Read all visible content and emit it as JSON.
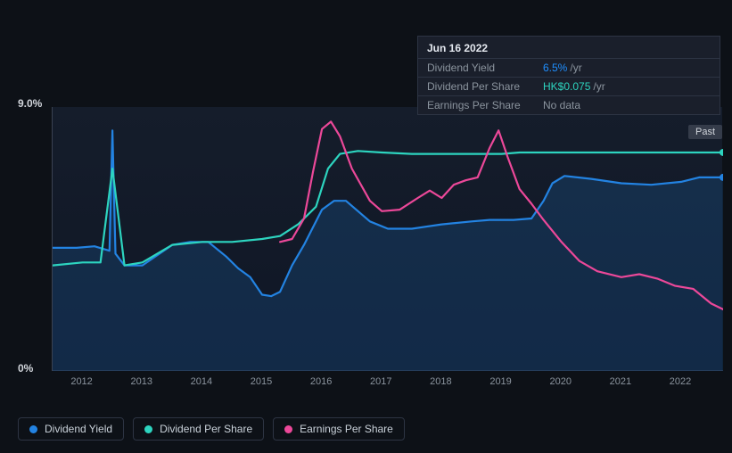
{
  "chart": {
    "type": "line",
    "background_color": "#0d1117",
    "plot_background": "#151d2b",
    "grid_color": "#3b4252",
    "y_axis": {
      "min_label": "0%",
      "max_label": "9.0%",
      "ylim": [
        0,
        9
      ],
      "label_color": "#d1d5db",
      "label_fontsize": 12
    },
    "x_axis": {
      "labels": [
        "2012",
        "2013",
        "2014",
        "2015",
        "2016",
        "2017",
        "2018",
        "2019",
        "2020",
        "2021",
        "2022"
      ],
      "label_color": "#8b949e",
      "label_fontsize": 11,
      "xlim": [
        2011.5,
        2022.7
      ]
    },
    "series": [
      {
        "name": "Dividend Yield",
        "color": "#2383e2",
        "line_width": 2.2,
        "has_area_fill": true,
        "area_opacity": 0.18,
        "end_marker": true,
        "points": [
          [
            2011.5,
            4.2
          ],
          [
            2011.9,
            4.2
          ],
          [
            2012.2,
            4.25
          ],
          [
            2012.45,
            4.1
          ],
          [
            2012.5,
            8.2
          ],
          [
            2012.55,
            4.0
          ],
          [
            2012.7,
            3.6
          ],
          [
            2013.0,
            3.6
          ],
          [
            2013.5,
            4.3
          ],
          [
            2013.8,
            4.4
          ],
          [
            2014.1,
            4.4
          ],
          [
            2014.4,
            3.9
          ],
          [
            2014.6,
            3.5
          ],
          [
            2014.8,
            3.2
          ],
          [
            2015.0,
            2.6
          ],
          [
            2015.15,
            2.55
          ],
          [
            2015.3,
            2.7
          ],
          [
            2015.5,
            3.6
          ],
          [
            2015.7,
            4.3
          ],
          [
            2016.0,
            5.5
          ],
          [
            2016.2,
            5.8
          ],
          [
            2016.4,
            5.8
          ],
          [
            2016.8,
            5.1
          ],
          [
            2017.1,
            4.85
          ],
          [
            2017.5,
            4.85
          ],
          [
            2018.0,
            5.0
          ],
          [
            2018.5,
            5.1
          ],
          [
            2018.8,
            5.15
          ],
          [
            2019.2,
            5.15
          ],
          [
            2019.5,
            5.2
          ],
          [
            2019.7,
            5.8
          ],
          [
            2019.85,
            6.4
          ],
          [
            2020.05,
            6.65
          ],
          [
            2020.5,
            6.55
          ],
          [
            2021.0,
            6.4
          ],
          [
            2021.5,
            6.35
          ],
          [
            2022.0,
            6.45
          ],
          [
            2022.3,
            6.6
          ],
          [
            2022.7,
            6.6
          ]
        ]
      },
      {
        "name": "Dividend Per Share",
        "color": "#2dd4bf",
        "line_width": 2.2,
        "has_area_fill": false,
        "end_marker": true,
        "points": [
          [
            2011.5,
            3.6
          ],
          [
            2012.0,
            3.7
          ],
          [
            2012.3,
            3.7
          ],
          [
            2012.5,
            6.9
          ],
          [
            2012.7,
            3.6
          ],
          [
            2013.0,
            3.7
          ],
          [
            2013.5,
            4.3
          ],
          [
            2014.0,
            4.4
          ],
          [
            2014.5,
            4.4
          ],
          [
            2015.0,
            4.5
          ],
          [
            2015.3,
            4.6
          ],
          [
            2015.6,
            5.0
          ],
          [
            2015.9,
            5.6
          ],
          [
            2016.1,
            6.9
          ],
          [
            2016.3,
            7.4
          ],
          [
            2016.6,
            7.5
          ],
          [
            2017.0,
            7.45
          ],
          [
            2017.5,
            7.4
          ],
          [
            2018.0,
            7.4
          ],
          [
            2019.0,
            7.4
          ],
          [
            2019.3,
            7.45
          ],
          [
            2020.0,
            7.45
          ],
          [
            2021.0,
            7.45
          ],
          [
            2022.0,
            7.45
          ],
          [
            2022.7,
            7.45
          ]
        ]
      },
      {
        "name": "Earnings Per Share",
        "color": "#ec4899",
        "line_width": 2.2,
        "has_area_fill": false,
        "end_marker": false,
        "points": [
          [
            2015.3,
            4.4
          ],
          [
            2015.5,
            4.5
          ],
          [
            2015.7,
            5.2
          ],
          [
            2015.85,
            6.8
          ],
          [
            2016.0,
            8.25
          ],
          [
            2016.15,
            8.5
          ],
          [
            2016.3,
            8.0
          ],
          [
            2016.5,
            6.9
          ],
          [
            2016.8,
            5.8
          ],
          [
            2017.0,
            5.45
          ],
          [
            2017.3,
            5.5
          ],
          [
            2017.6,
            5.9
          ],
          [
            2017.8,
            6.15
          ],
          [
            2018.0,
            5.9
          ],
          [
            2018.2,
            6.35
          ],
          [
            2018.4,
            6.5
          ],
          [
            2018.6,
            6.6
          ],
          [
            2018.8,
            7.6
          ],
          [
            2018.95,
            8.2
          ],
          [
            2019.1,
            7.3
          ],
          [
            2019.3,
            6.2
          ],
          [
            2019.5,
            5.7
          ],
          [
            2019.7,
            5.15
          ],
          [
            2020.0,
            4.4
          ],
          [
            2020.3,
            3.75
          ],
          [
            2020.6,
            3.4
          ],
          [
            2021.0,
            3.2
          ],
          [
            2021.3,
            3.3
          ],
          [
            2021.6,
            3.15
          ],
          [
            2021.9,
            2.9
          ],
          [
            2022.2,
            2.8
          ],
          [
            2022.5,
            2.3
          ],
          [
            2022.7,
            2.1
          ]
        ]
      }
    ],
    "past_label": "Past"
  },
  "tooltip": {
    "title": "Jun 16 2022",
    "rows": [
      {
        "label": "Dividend Yield",
        "value": "6.5%",
        "unit": "/yr",
        "value_color": "#1f8fff"
      },
      {
        "label": "Dividend Per Share",
        "value": "HK$0.075",
        "unit": "/yr",
        "value_color": "#2dd4bf"
      },
      {
        "label": "Earnings Per Share",
        "value": "No data",
        "unit": "",
        "value_color": "#8b949e"
      }
    ]
  },
  "legend": {
    "items": [
      {
        "label": "Dividend Yield",
        "color": "#2383e2"
      },
      {
        "label": "Dividend Per Share",
        "color": "#2dd4bf"
      },
      {
        "label": "Earnings Per Share",
        "color": "#ec4899"
      }
    ]
  }
}
